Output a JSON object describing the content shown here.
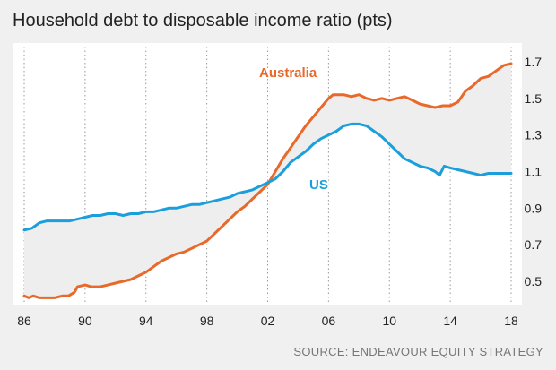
{
  "chart_data": {
    "type": "line",
    "title": "Household debt to disposable income ratio (pts)",
    "source": "SOURCE: ENDEAVOUR EQUITY STRATEGY",
    "xlabel": "",
    "ylabel": "",
    "x_ticks": [
      "86",
      "90",
      "94",
      "98",
      "02",
      "06",
      "10",
      "14",
      "18"
    ],
    "x_tick_values": [
      1986,
      1990,
      1994,
      1998,
      2002,
      2006,
      2010,
      2014,
      2018
    ],
    "y_ticks": [
      "0.5",
      "0.7",
      "0.9",
      "1.1",
      "1.3",
      "1.5",
      "1.7"
    ],
    "y_tick_values": [
      0.5,
      0.7,
      0.9,
      1.1,
      1.3,
      1.5,
      1.7
    ],
    "xlim": [
      1986,
      2018.3
    ],
    "ylim": [
      0.4,
      1.73
    ],
    "grid": "vertical dotted",
    "series": [
      {
        "name": "Australia",
        "color": "#e8692a",
        "x": [
          1986.0,
          1986.3,
          1986.6,
          1987.0,
          1987.5,
          1988.0,
          1988.5,
          1988.9,
          1989.3,
          1989.5,
          1990.0,
          1990.4,
          1990.7,
          1991.0,
          1991.5,
          1992.0,
          1992.5,
          1993.0,
          1993.5,
          1994.0,
          1994.5,
          1995.0,
          1995.5,
          1996.0,
          1996.5,
          1997.0,
          1997.5,
          1998.0,
          1998.5,
          1999.0,
          1999.5,
          2000.0,
          2000.5,
          2001.0,
          2001.5,
          2002.0,
          2002.5,
          2003.0,
          2003.5,
          2004.0,
          2004.5,
          2005.0,
          2005.5,
          2006.0,
          2006.3,
          2006.6,
          2007.0,
          2007.5,
          2008.0,
          2008.5,
          2009.0,
          2009.5,
          2010.0,
          2010.5,
          2011.0,
          2011.5,
          2012.0,
          2012.5,
          2013.0,
          2013.5,
          2014.0,
          2014.5,
          2015.0,
          2015.5,
          2016.0,
          2016.5,
          2017.0,
          2017.5,
          2018.0
        ],
        "values": [
          0.42,
          0.41,
          0.42,
          0.41,
          0.41,
          0.41,
          0.42,
          0.42,
          0.44,
          0.47,
          0.48,
          0.47,
          0.47,
          0.47,
          0.48,
          0.49,
          0.5,
          0.51,
          0.53,
          0.55,
          0.58,
          0.61,
          0.63,
          0.65,
          0.66,
          0.68,
          0.7,
          0.72,
          0.76,
          0.8,
          0.84,
          0.88,
          0.91,
          0.95,
          0.99,
          1.03,
          1.1,
          1.17,
          1.23,
          1.29,
          1.35,
          1.4,
          1.45,
          1.5,
          1.52,
          1.52,
          1.52,
          1.51,
          1.52,
          1.5,
          1.49,
          1.5,
          1.49,
          1.5,
          1.51,
          1.49,
          1.47,
          1.46,
          1.45,
          1.46,
          1.46,
          1.48,
          1.54,
          1.57,
          1.61,
          1.62,
          1.65,
          1.68,
          1.69
        ]
      },
      {
        "name": "US",
        "color": "#1a9fdc",
        "x": [
          1986.0,
          1986.5,
          1987.0,
          1987.5,
          1988.0,
          1988.5,
          1989.0,
          1989.5,
          1990.0,
          1990.5,
          1991.0,
          1991.5,
          1992.0,
          1992.5,
          1993.0,
          1993.5,
          1994.0,
          1994.5,
          1995.0,
          1995.5,
          1996.0,
          1996.5,
          1997.0,
          1997.5,
          1998.0,
          1998.5,
          1999.0,
          1999.5,
          2000.0,
          2000.5,
          2001.0,
          2001.5,
          2002.0,
          2002.5,
          2003.0,
          2003.5,
          2004.0,
          2004.5,
          2005.0,
          2005.5,
          2006.0,
          2006.5,
          2007.0,
          2007.5,
          2008.0,
          2008.5,
          2009.0,
          2009.5,
          2010.0,
          2010.5,
          2011.0,
          2011.5,
          2012.0,
          2012.5,
          2013.0,
          2013.3,
          2013.6,
          2014.0,
          2014.5,
          2015.0,
          2015.5,
          2016.0,
          2016.5,
          2017.0,
          2017.5,
          2018.0
        ],
        "values": [
          0.78,
          0.79,
          0.82,
          0.83,
          0.83,
          0.83,
          0.83,
          0.84,
          0.85,
          0.86,
          0.86,
          0.87,
          0.87,
          0.86,
          0.87,
          0.87,
          0.88,
          0.88,
          0.89,
          0.9,
          0.9,
          0.91,
          0.92,
          0.92,
          0.93,
          0.94,
          0.95,
          0.96,
          0.98,
          0.99,
          1.0,
          1.02,
          1.04,
          1.06,
          1.1,
          1.15,
          1.18,
          1.21,
          1.25,
          1.28,
          1.3,
          1.32,
          1.35,
          1.36,
          1.36,
          1.35,
          1.32,
          1.29,
          1.25,
          1.21,
          1.17,
          1.15,
          1.13,
          1.12,
          1.1,
          1.08,
          1.13,
          1.12,
          1.11,
          1.1,
          1.09,
          1.08,
          1.09,
          1.09,
          1.09,
          1.09
        ]
      }
    ],
    "annotations": [
      {
        "text": "Australia",
        "series": "Australia",
        "color": "#e8692a"
      },
      {
        "text": "US",
        "series": "US",
        "color": "#1a9fdc"
      }
    ],
    "colors": {
      "background": "#f0f0f0",
      "plot_background": "#ffffff",
      "text": "#222222",
      "source": "#777777",
      "grid": "#999999"
    }
  }
}
